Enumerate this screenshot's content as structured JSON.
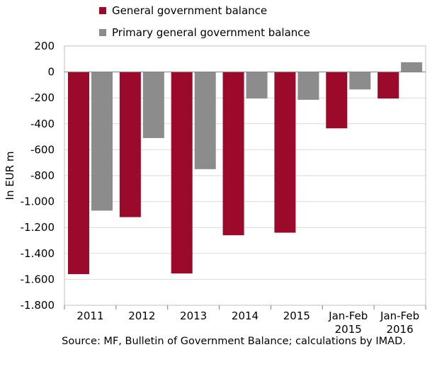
{
  "chart_data": {
    "type": "bar",
    "categories": [
      [
        "2011"
      ],
      [
        "2012"
      ],
      [
        "2013"
      ],
      [
        "2014"
      ],
      [
        "2015"
      ],
      [
        "Jan-Feb",
        "2015"
      ],
      [
        "Jan-Feb",
        "2016"
      ]
    ],
    "series": [
      {
        "name": "General government balance",
        "color": "#9b0a2a",
        "values": [
          -1560,
          -1120,
          -1555,
          -1260,
          -1240,
          -435,
          -205
        ]
      },
      {
        "name": "Primary general government balance",
        "color": "#8c8c8c",
        "values": [
          -1070,
          -510,
          -750,
          -205,
          -215,
          -135,
          75
        ]
      }
    ],
    "ylabel": "In EUR m",
    "ylim": [
      -1800,
      200
    ],
    "yticks": [
      200,
      0,
      -200,
      -400,
      -600,
      -800,
      -1000,
      -1200,
      -1400,
      -1600,
      -1800
    ],
    "ytick_labels": [
      "200",
      "0",
      "-200",
      "-400",
      "-600",
      "-800",
      "-1.000",
      "-1.200",
      "-1.400",
      "-1.600",
      "-1.800"
    ],
    "grid": true,
    "legend_position": "top"
  },
  "source": "Source: MF, Bulletin of Government Balance; calculations by IMAD."
}
